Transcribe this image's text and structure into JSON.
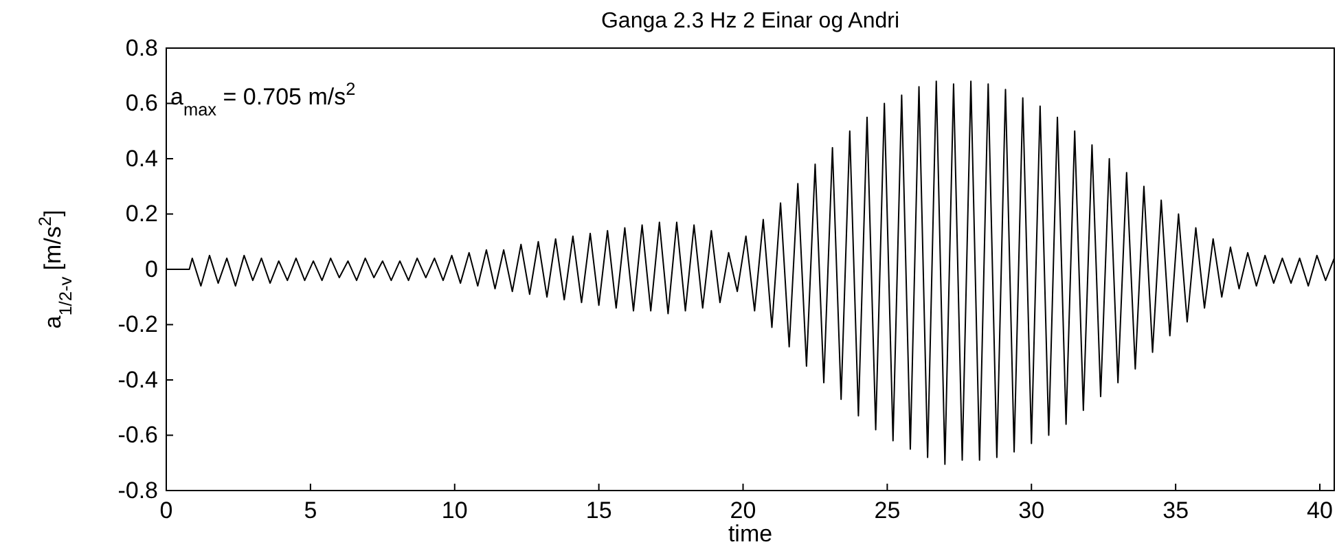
{
  "chart_data": {
    "type": "line",
    "title": "Ganga 2.3 Hz 2 Einar og Andri",
    "xlabel": "time",
    "ylabel": "a$_{1/2-v}$ [m/s$^{2}$]",
    "annotations": [
      "a$_{max}$ = 0.705 m/s$^{2}$"
    ],
    "xlim": [
      0,
      40.5
    ],
    "xticks": [
      0,
      5,
      10,
      15,
      20,
      25,
      30,
      35,
      40
    ],
    "ylim": [
      -0.8,
      0.8
    ],
    "yticks": [
      -0.8,
      -0.6,
      -0.4,
      -0.2,
      0,
      0.2,
      0.4,
      0.6,
      0.8
    ],
    "grid": false,
    "marker": "none",
    "line_style": "solid",
    "series": [
      {
        "color": "#000000",
        "x": [
          0,
          0.8,
          0.9,
          1.2,
          1.5,
          1.8,
          2.1,
          2.4,
          2.7,
          3.0,
          3.3,
          3.6,
          3.9,
          4.2,
          4.5,
          4.8,
          5.1,
          5.4,
          5.7,
          6.0,
          6.3,
          6.6,
          6.9,
          7.2,
          7.5,
          7.8,
          8.1,
          8.4,
          8.7,
          9.0,
          9.3,
          9.6,
          9.9,
          10.2,
          10.5,
          10.8,
          11.1,
          11.4,
          11.7,
          12.0,
          12.3,
          12.6,
          12.9,
          13.2,
          13.5,
          13.8,
          14.1,
          14.4,
          14.7,
          15.0,
          15.3,
          15.6,
          15.9,
          16.2,
          16.5,
          16.8,
          17.1,
          17.4,
          17.7,
          18.0,
          18.3,
          18.6,
          18.9,
          19.2,
          19.5,
          19.8,
          20.1,
          20.4,
          20.7,
          21.0,
          21.3,
          21.6,
          21.9,
          22.2,
          22.5,
          22.8,
          23.1,
          23.4,
          23.7,
          24.0,
          24.3,
          24.6,
          24.9,
          25.2,
          25.5,
          25.8,
          26.1,
          26.4,
          26.7,
          27.0,
          27.3,
          27.6,
          27.9,
          28.2,
          28.5,
          28.8,
          29.1,
          29.4,
          29.7,
          30.0,
          30.3,
          30.6,
          30.9,
          31.2,
          31.5,
          31.8,
          32.1,
          32.4,
          32.7,
          33.0,
          33.3,
          33.6,
          33.9,
          34.2,
          34.5,
          34.8,
          35.1,
          35.4,
          35.7,
          36.0,
          36.3,
          36.6,
          36.9,
          37.2,
          37.5,
          37.8,
          38.1,
          38.4,
          38.7,
          39.0,
          39.3,
          39.6,
          39.9,
          40.2,
          40.5
        ],
        "values": [
          0,
          0,
          0.04,
          -0.06,
          0.05,
          -0.05,
          0.04,
          -0.06,
          0.05,
          -0.04,
          0.04,
          -0.05,
          0.03,
          -0.04,
          0.04,
          -0.04,
          0.03,
          -0.04,
          0.04,
          -0.03,
          0.03,
          -0.04,
          0.04,
          -0.03,
          0.03,
          -0.04,
          0.03,
          -0.04,
          0.04,
          -0.03,
          0.04,
          -0.04,
          0.05,
          -0.05,
          0.06,
          -0.06,
          0.07,
          -0.07,
          0.07,
          -0.08,
          0.09,
          -0.09,
          0.1,
          -0.1,
          0.11,
          -0.11,
          0.12,
          -0.12,
          0.13,
          -0.13,
          0.14,
          -0.14,
          0.15,
          -0.15,
          0.16,
          -0.15,
          0.17,
          -0.16,
          0.17,
          -0.15,
          0.16,
          -0.14,
          0.14,
          -0.12,
          0.06,
          -0.08,
          0.12,
          -0.15,
          0.18,
          -0.21,
          0.24,
          -0.28,
          0.31,
          -0.35,
          0.38,
          -0.41,
          0.44,
          -0.47,
          0.5,
          -0.53,
          0.55,
          -0.58,
          0.6,
          -0.62,
          0.63,
          -0.65,
          0.66,
          -0.68,
          0.68,
          -0.705,
          0.67,
          -0.69,
          0.68,
          -0.69,
          0.67,
          -0.68,
          0.65,
          -0.66,
          0.62,
          -0.63,
          0.59,
          -0.6,
          0.55,
          -0.56,
          0.5,
          -0.51,
          0.45,
          -0.46,
          0.4,
          -0.41,
          0.35,
          -0.36,
          0.3,
          -0.3,
          0.25,
          -0.24,
          0.2,
          -0.19,
          0.15,
          -0.14,
          0.11,
          -0.1,
          0.08,
          -0.07,
          0.06,
          -0.06,
          0.05,
          -0.05,
          0.04,
          -0.05,
          0.04,
          -0.06,
          0.05,
          -0.04,
          0.04
        ]
      }
    ]
  }
}
